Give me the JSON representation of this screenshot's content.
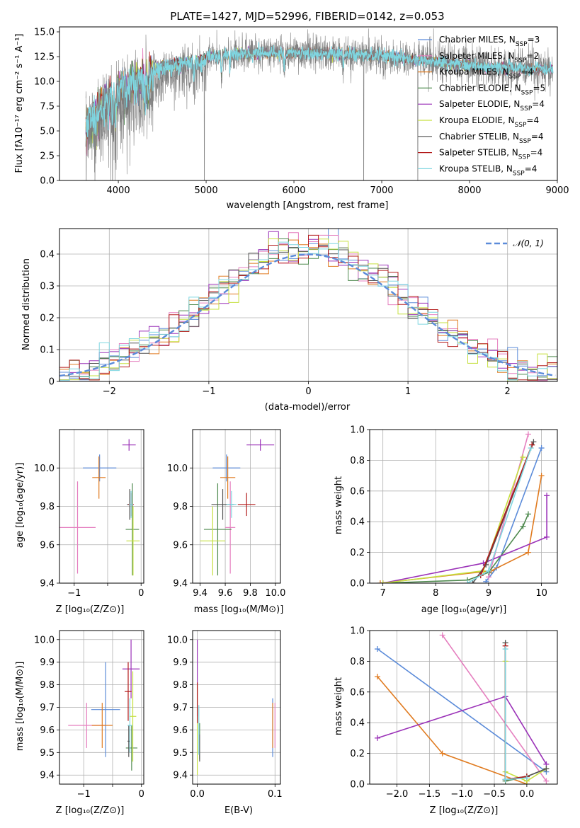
{
  "colors": {
    "chabrier_miles": "#5b8bd9",
    "salpeter_miles": "#e57fbf",
    "kroupa_miles": "#e07b20",
    "chabrier_elodie": "#4f8a4f",
    "salpeter_elodie": "#9b32b8",
    "kroupa_elodie": "#c6e040",
    "chabrier_stelib": "#555555",
    "salpeter_stelib": "#b31b1b",
    "kroupa_stelib": "#7fd6e0",
    "spectrum": "#808080",
    "gauss": "#5b8bd9"
  },
  "legend": [
    {
      "name": "Chabrier MILES",
      "nssp": "3",
      "color": "#5b8bd9"
    },
    {
      "name": "Salpeter MILES",
      "nssp": "2",
      "color": "#e57fbf"
    },
    {
      "name": "Kroupa MILES",
      "nssp": "4",
      "color": "#e07b20"
    },
    {
      "name": "Chabrier ELODIE",
      "nssp": "5",
      "color": "#4f8a4f"
    },
    {
      "name": "Salpeter ELODIE",
      "nssp": "4",
      "color": "#9b32b8"
    },
    {
      "name": "Kroupa ELODIE",
      "nssp": "4",
      "color": "#c6e040"
    },
    {
      "name": "Chabrier STELIB",
      "nssp": "4",
      "color": "#555555"
    },
    {
      "name": "Salpeter STELIB",
      "nssp": "4",
      "color": "#b31b1b"
    },
    {
      "name": "Kroupa STELIB",
      "nssp": "4",
      "color": "#7fd6e0"
    }
  ],
  "chart_data": [
    {
      "id": "spectrum",
      "type": "line",
      "title": "PLATE=1427, MJD=52996, FIBERID=0142, z=0.053",
      "xlabel": "wavelength [Angstrom, rest frame]",
      "ylabel": "Flux [fλ10⁻¹⁷ erg cm⁻² s⁻¹ A⁻¹]",
      "xlim": [
        3330,
        9000
      ],
      "ylim": [
        0,
        15.5
      ],
      "xticks": [
        4000,
        5000,
        6000,
        7000,
        8000,
        9000
      ],
      "yticks": [
        0.0,
        2.5,
        5.0,
        7.5,
        10.0,
        12.5,
        15.0
      ],
      "ytick_labels": [
        "0.0",
        "2.5",
        "5.0",
        "7.5",
        "10.0",
        "12.5",
        "15.0"
      ],
      "continuum": [
        [
          3630,
          6.5
        ],
        [
          3800,
          8.2
        ],
        [
          3950,
          9.5
        ],
        [
          4100,
          10.5
        ],
        [
          4300,
          11.3
        ],
        [
          4600,
          12.0
        ],
        [
          5000,
          12.5
        ],
        [
          5500,
          12.8
        ],
        [
          6000,
          12.9
        ],
        [
          6500,
          12.8
        ],
        [
          7000,
          12.6
        ],
        [
          7400,
          12.2
        ],
        [
          7800,
          11.8
        ],
        [
          8200,
          11.4
        ],
        [
          8600,
          11.3
        ],
        [
          8950,
          11.2
        ]
      ],
      "absorption": [
        [
          3934,
          3.0
        ],
        [
          3968,
          3.0
        ],
        [
          4101,
          1.5
        ],
        [
          4300,
          2.0
        ],
        [
          4340,
          1.5
        ],
        [
          4861,
          1.5
        ],
        [
          5175,
          2.0
        ],
        [
          5270,
          1.0
        ],
        [
          5890,
          1.5
        ],
        [
          6563,
          1.5
        ]
      ],
      "drops": [
        [
          3935,
          0.0
        ],
        [
          4980,
          0.0
        ],
        [
          6795,
          0.0
        ],
        [
          7410,
          0.0
        ]
      ],
      "grid": false,
      "legend_position": "upper right"
    },
    {
      "id": "residuals",
      "type": "histogram",
      "xlabel": "(data-model)/error",
      "ylabel": "Normed distribution",
      "xlim": [
        -2.5,
        2.5
      ],
      "ylim": [
        0,
        0.48
      ],
      "xticks": [
        -2,
        -1,
        0,
        1,
        2
      ],
      "yticks": [
        0.0,
        0.1,
        0.2,
        0.3,
        0.4
      ],
      "bin_width": 0.1,
      "gauss_label": "𝒩(0, 1)",
      "grid": true,
      "legend_position": "upper right"
    },
    {
      "id": "age_vs_Z",
      "type": "errorbar",
      "xlabel": "Z [log₁₀(Z/Z⊙)]",
      "ylabel": "age  [log₁₀(age/yr)]",
      "xlim": [
        -1.22,
        0.04
      ],
      "ylim": [
        9.4,
        10.2
      ],
      "xticks": [
        -1,
        -0.5,
        0
      ],
      "xtick_labels": [
        "−1",
        "",
        "0"
      ],
      "yticks": [
        9.4,
        9.6,
        9.8,
        10.0
      ],
      "ytick_labels": [
        "9.4",
        "9.6",
        "9.8",
        "10.0"
      ],
      "points": [
        {
          "x": -0.62,
          "xerr": 0.25,
          "y": 10.0,
          "yerr": 0.07,
          "color": "#5b8bd9"
        },
        {
          "x": -0.95,
          "xerr": 0.27,
          "y": 9.69,
          "yerr": 0.24,
          "color": "#e57fbf"
        },
        {
          "x": -0.63,
          "xerr": 0.1,
          "y": 9.95,
          "yerr": 0.11,
          "color": "#e07b20"
        },
        {
          "x": -0.13,
          "xerr": 0.1,
          "y": 9.68,
          "yerr": 0.24,
          "color": "#4f8a4f"
        },
        {
          "x": -0.18,
          "xerr": 0.1,
          "y": 10.12,
          "yerr": 0.03,
          "color": "#9b32b8"
        },
        {
          "x": -0.12,
          "xerr": 0.1,
          "y": 9.62,
          "yerr": 0.18,
          "color": "#c6e040"
        },
        {
          "x": -0.17,
          "xerr": 0.04,
          "y": 9.81,
          "yerr": 0.08,
          "color": "#555555"
        },
        {
          "x": -0.15,
          "xerr": 0.04,
          "y": 9.81,
          "yerr": 0.06,
          "color": "#b31b1b"
        },
        {
          "x": -0.15,
          "xerr": 0.03,
          "y": 9.81,
          "yerr": 0.07,
          "color": "#7fd6e0"
        }
      ],
      "grid": true
    },
    {
      "id": "age_vs_mass",
      "type": "errorbar",
      "xlabel": "mass [log₁₀(M/M⊙)]",
      "ylabel": "",
      "xlim": [
        9.34,
        10.04
      ],
      "ylim": [
        9.4,
        10.2
      ],
      "xticks": [
        9.4,
        9.6,
        9.8,
        10.0
      ],
      "xtick_labels": [
        "9.4",
        "9.6",
        "9.8",
        "10.0"
      ],
      "yticks": [
        9.4,
        9.6,
        9.8,
        10.0
      ],
      "ytick_labels": [
        "9.4",
        "9.6",
        "9.8",
        "10.0"
      ],
      "points": [
        {
          "x": 9.61,
          "xerr": 0.11,
          "y": 10.0,
          "yerr": 0.07,
          "color": "#5b8bd9"
        },
        {
          "x": 9.64,
          "xerr": 0.04,
          "y": 9.69,
          "yerr": 0.24,
          "color": "#e57fbf"
        },
        {
          "x": 9.62,
          "xerr": 0.06,
          "y": 9.95,
          "yerr": 0.11,
          "color": "#e07b20"
        },
        {
          "x": 9.54,
          "xerr": 0.11,
          "y": 9.68,
          "yerr": 0.24,
          "color": "#4f8a4f"
        },
        {
          "x": 9.88,
          "xerr": 0.11,
          "y": 10.12,
          "yerr": 0.03,
          "color": "#9b32b8"
        },
        {
          "x": 9.5,
          "xerr": 0.1,
          "y": 9.62,
          "yerr": 0.18,
          "color": "#c6e040"
        },
        {
          "x": 9.58,
          "xerr": 0.09,
          "y": 9.81,
          "yerr": 0.08,
          "color": "#555555"
        },
        {
          "x": 9.77,
          "xerr": 0.07,
          "y": 9.81,
          "yerr": 0.06,
          "color": "#b31b1b"
        },
        {
          "x": 9.65,
          "xerr": 0.04,
          "y": 9.81,
          "yerr": 0.07,
          "color": "#7fd6e0"
        }
      ],
      "grid": true
    },
    {
      "id": "weight_vs_age",
      "type": "line",
      "xlabel": "age  [log₁₀(age/yr)]",
      "ylabel": "mass weight",
      "xlim": [
        6.75,
        10.3
      ],
      "ylim": [
        0,
        1
      ],
      "xticks": [
        7,
        8,
        9,
        10
      ],
      "xtick_labels": [
        "7",
        "8",
        "9",
        "10"
      ],
      "yticks": [
        0,
        0.2,
        0.4,
        0.6,
        0.8,
        1.0
      ],
      "ytick_labels": [
        "0.0",
        "0.2",
        "0.4",
        "0.6",
        "0.8",
        "1.0"
      ],
      "series": [
        {
          "color": "#5b8bd9",
          "points": [
            [
              8.95,
              0.01
            ],
            [
              9.15,
              0.1
            ],
            [
              10.0,
              0.88
            ]
          ]
        },
        {
          "color": "#e57fbf",
          "points": [
            [
              9.0,
              0.04
            ],
            [
              9.75,
              0.97
            ]
          ]
        },
        {
          "color": "#e07b20",
          "points": [
            [
              6.95,
              0.0
            ],
            [
              9.05,
              0.08
            ],
            [
              9.75,
              0.2
            ],
            [
              10.0,
              0.7
            ]
          ]
        },
        {
          "color": "#4f8a4f",
          "points": [
            [
              7.0,
              0.0
            ],
            [
              8.6,
              0.02
            ],
            [
              9.0,
              0.07
            ],
            [
              9.65,
              0.37
            ],
            [
              9.75,
              0.45
            ]
          ]
        },
        {
          "color": "#9b32b8",
          "points": [
            [
              7.0,
              0.0
            ],
            [
              8.9,
              0.13
            ],
            [
              10.1,
              0.3
            ],
            [
              10.1,
              0.57
            ]
          ]
        },
        {
          "color": "#c6e040",
          "points": [
            [
              7.0,
              0.0
            ],
            [
              8.9,
              0.08
            ],
            [
              9.65,
              0.82
            ]
          ]
        },
        {
          "color": "#555555",
          "points": [
            [
              8.7,
              0.0
            ],
            [
              8.95,
              0.12
            ],
            [
              9.85,
              0.92
            ]
          ]
        },
        {
          "color": "#b31b1b",
          "points": [
            [
              8.85,
              0.05
            ],
            [
              9.82,
              0.9
            ]
          ]
        },
        {
          "color": "#7fd6e0",
          "points": [
            [
              8.6,
              0.0
            ],
            [
              9.0,
              0.08
            ],
            [
              9.8,
              0.88
            ]
          ]
        }
      ],
      "grid": true
    },
    {
      "id": "mass_vs_Z",
      "type": "errorbar",
      "xlabel": "Z [log₁₀(Z/Z⊙)]",
      "ylabel": "mass [log₁₀(M/M⊙)]",
      "xlim": [
        -1.42,
        0.04
      ],
      "ylim": [
        9.36,
        10.04
      ],
      "xticks": [
        -1,
        -0.5,
        0
      ],
      "xtick_labels": [
        "−1",
        "",
        "0"
      ],
      "yticks": [
        9.4,
        9.5,
        9.6,
        9.7,
        9.8,
        9.9,
        10.0
      ],
      "ytick_labels": [
        "9.4",
        "9.5",
        "9.6",
        "9.7",
        "9.8",
        "9.9",
        "10.0"
      ],
      "points": [
        {
          "x": -0.62,
          "xerr": 0.25,
          "y": 9.69,
          "yerr": 0.21,
          "color": "#5b8bd9"
        },
        {
          "x": -0.95,
          "xerr": 0.32,
          "y": 9.62,
          "yerr": 0.1,
          "color": "#e57fbf"
        },
        {
          "x": -0.68,
          "xerr": 0.18,
          "y": 9.62,
          "yerr": 0.1,
          "color": "#e07b20"
        },
        {
          "x": -0.17,
          "xerr": 0.1,
          "y": 9.52,
          "yerr": 0.1,
          "color": "#4f8a4f"
        },
        {
          "x": -0.18,
          "xerr": 0.15,
          "y": 9.87,
          "yerr": 0.13,
          "color": "#9b32b8"
        },
        {
          "x": -0.15,
          "xerr": 0.06,
          "y": 9.66,
          "yerr": 0.2,
          "color": "#c6e040"
        },
        {
          "x": -0.22,
          "xerr": 0.02,
          "y": 9.55,
          "yerr": 0.07,
          "color": "#555555"
        },
        {
          "x": -0.23,
          "xerr": 0.06,
          "y": 9.77,
          "yerr": 0.13,
          "color": "#b31b1b"
        },
        {
          "x": -0.2,
          "xerr": 0.04,
          "y": 9.62,
          "yerr": 0.12,
          "color": "#7fd6e0"
        }
      ],
      "grid": true
    },
    {
      "id": "mass_vs_ebv",
      "type": "errorbar",
      "xlabel": "E(B-V)",
      "ylabel": "",
      "xlim": [
        -0.006,
        0.107
      ],
      "ylim": [
        9.36,
        10.04
      ],
      "xticks": [
        0.0,
        0.1
      ],
      "xtick_labels": [
        "0.0",
        "0.1"
      ],
      "yticks": [
        9.4,
        9.5,
        9.6,
        9.7,
        9.8,
        9.9,
        10.0
      ],
      "ytick_labels": [
        "9.4",
        "9.5",
        "9.6",
        "9.7",
        "9.8",
        "9.9",
        "10.0"
      ],
      "points": [
        {
          "x": 0.097,
          "xerr": 0.0,
          "y": 9.61,
          "yerr": 0.13,
          "color": "#5b8bd9"
        },
        {
          "x": 0.1,
          "xerr": 0.0,
          "y": 9.62,
          "yerr": 0.1,
          "color": "#e57fbf"
        },
        {
          "x": 0.097,
          "xerr": 0.0,
          "y": 9.62,
          "yerr": 0.1,
          "color": "#e07b20"
        },
        {
          "x": 0.003,
          "xerr": 0.0,
          "y": 9.55,
          "yerr": 0.08,
          "color": "#4f8a4f"
        },
        {
          "x": 0.0,
          "xerr": 0.0,
          "y": 9.83,
          "yerr": 0.17,
          "color": "#9b32b8"
        },
        {
          "x": 0.0,
          "xerr": 0.0,
          "y": 9.6,
          "yerr": 0.2,
          "color": "#c6e040"
        },
        {
          "x": 0.003,
          "xerr": 0.0,
          "y": 9.52,
          "yerr": 0.06,
          "color": "#555555"
        },
        {
          "x": 0.0,
          "xerr": 0.0,
          "y": 9.72,
          "yerr": 0.09,
          "color": "#b31b1b"
        },
        {
          "x": 0.002,
          "xerr": 0.0,
          "y": 9.6,
          "yerr": 0.11,
          "color": "#7fd6e0"
        }
      ],
      "grid": true
    },
    {
      "id": "weight_vs_Z",
      "type": "line",
      "xlabel": "Z [log₁₀(Z/Z⊙)]",
      "ylabel": "mass weight",
      "xlim": [
        -2.42,
        0.47
      ],
      "ylim": [
        0,
        1
      ],
      "xticks": [
        -2.0,
        -1.5,
        -1.0,
        -0.5,
        0.0
      ],
      "xtick_labels": [
        "−2.0",
        "−1.5",
        "−1.0",
        "−0.5",
        "0.0"
      ],
      "yticks": [
        0,
        0.2,
        0.4,
        0.6,
        0.8,
        1.0
      ],
      "ytick_labels": [
        "0.0",
        "0.2",
        "0.4",
        "0.6",
        "0.8",
        "1.0"
      ],
      "series": [
        {
          "color": "#5b8bd9",
          "points": [
            [
              -2.3,
              0.88
            ],
            [
              0.3,
              0.08
            ]
          ]
        },
        {
          "color": "#e57fbf",
          "points": [
            [
              -1.3,
              0.97
            ],
            [
              0.3,
              0.02
            ]
          ]
        },
        {
          "color": "#e07b20",
          "points": [
            [
              -2.3,
              0.7
            ],
            [
              -1.3,
              0.2
            ],
            [
              0.0,
              0.0
            ],
            [
              0.0,
              0.05
            ]
          ]
        },
        {
          "color": "#4f8a4f",
          "points": [
            [
              -0.33,
              0.92
            ],
            [
              -0.33,
              0.02
            ],
            [
              0.0,
              0.05
            ],
            [
              0.3,
              0.1
            ]
          ]
        },
        {
          "color": "#9b32b8",
          "points": [
            [
              -2.3,
              0.3
            ],
            [
              -0.33,
              0.57
            ],
            [
              0.3,
              0.13
            ]
          ]
        },
        {
          "color": "#c6e040",
          "points": [
            [
              -0.33,
              0.8
            ],
            [
              -0.33,
              0.08
            ],
            [
              0.0,
              0.02
            ],
            [
              0.3,
              0.1
            ]
          ]
        },
        {
          "color": "#555555",
          "points": [
            [
              -0.33,
              0.92
            ],
            [
              -0.33,
              0.03
            ],
            [
              0.0,
              0.05
            ],
            [
              0.3,
              0.1
            ]
          ]
        },
        {
          "color": "#b31b1b",
          "points": [
            [
              -0.33,
              0.9
            ],
            [
              -0.33,
              0.03
            ],
            [
              0.0,
              0.05
            ]
          ]
        },
        {
          "color": "#7fd6e0",
          "points": [
            [
              -0.33,
              0.88
            ],
            [
              -0.33,
              0.03
            ],
            [
              0.0,
              0.04
            ]
          ]
        }
      ],
      "grid": true
    }
  ]
}
